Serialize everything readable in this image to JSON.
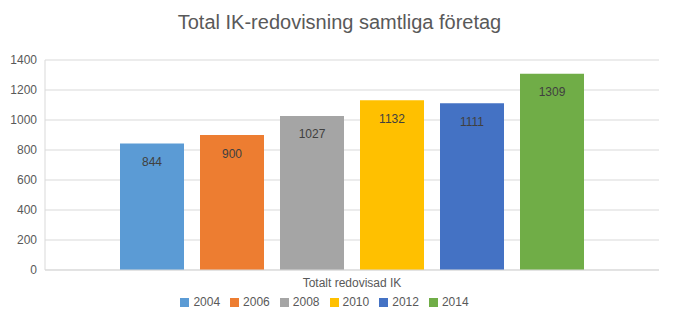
{
  "chart_data": {
    "type": "bar",
    "title": "Total IK-redovisning samtliga företag",
    "categories": [
      "Totalt redovisad IK"
    ],
    "series": [
      {
        "name": "2004",
        "color": "#5b9bd5",
        "values": [
          844
        ]
      },
      {
        "name": "2006",
        "color": "#ed7d31",
        "values": [
          900
        ]
      },
      {
        "name": "2008",
        "color": "#a5a5a5",
        "values": [
          1027
        ]
      },
      {
        "name": "2010",
        "color": "#ffc000",
        "values": [
          1132
        ]
      },
      {
        "name": "2012",
        "color": "#4472c4",
        "values": [
          1111
        ]
      },
      {
        "name": "2014",
        "color": "#70ad47",
        "values": [
          1309
        ]
      }
    ],
    "ylim": [
      0,
      1400
    ],
    "yticks": [
      0,
      200,
      400,
      600,
      800,
      1000,
      1200,
      1400
    ],
    "grid": true,
    "legend": "bottom",
    "data_labels": true
  }
}
